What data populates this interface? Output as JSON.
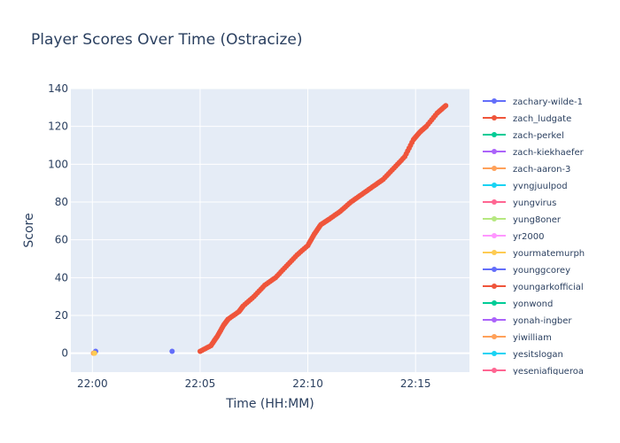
{
  "chart_data": {
    "type": "line",
    "title": "Player Scores Over Time (Ostracize)",
    "xlabel": "Time (HH:MM)",
    "ylabel": "Score",
    "x_tick_labels": [
      "22:00",
      "22:05",
      "22:10",
      "22:15"
    ],
    "x_tick_minutes": [
      0,
      5,
      10,
      15
    ],
    "xlim_minutes": [
      -1.0,
      17.5
    ],
    "ylim": [
      -10,
      140
    ],
    "y_ticks": [
      0,
      20,
      40,
      60,
      80,
      100,
      120,
      140
    ],
    "grid": true,
    "legend_position": "right",
    "series": [
      {
        "name": "zachary-wilde-1",
        "color": "#636efa",
        "x_minutes": [
          0.15
        ],
        "y": [
          1
        ]
      },
      {
        "name": "zach_ludgate",
        "color": "#EF553B",
        "x_minutes": [],
        "y": []
      },
      {
        "name": "zach-perkel",
        "color": "#00cc96",
        "x_minutes": [],
        "y": []
      },
      {
        "name": "zach-kiekhaefer",
        "color": "#ab63fa",
        "x_minutes": [],
        "y": []
      },
      {
        "name": "zach-aaron-3",
        "color": "#FFA15A",
        "x_minutes": [
          0.05
        ],
        "y": [
          0
        ]
      },
      {
        "name": "yvngjuulpod",
        "color": "#19d3f3",
        "x_minutes": [],
        "y": []
      },
      {
        "name": "yungvirus",
        "color": "#FF6692",
        "x_minutes": [],
        "y": []
      },
      {
        "name": "yung8oner",
        "color": "#B6E880",
        "x_minutes": [],
        "y": []
      },
      {
        "name": "yr2000",
        "color": "#FF97FF",
        "x_minutes": [],
        "y": []
      },
      {
        "name": "yourmatemurph",
        "color": "#FECB52",
        "x_minutes": [
          0.1
        ],
        "y": [
          0
        ]
      },
      {
        "name": "younggcorey",
        "color": "#636efa",
        "x_minutes": [
          3.7
        ],
        "y": [
          1
        ]
      },
      {
        "name": "youngarkofficial",
        "color": "#EF553B",
        "x_minutes": [
          5.0,
          5.5,
          5.8,
          6.1,
          6.3,
          6.8,
          7.0,
          7.5,
          8.0,
          8.5,
          9.0,
          9.5,
          10.0,
          10.3,
          10.6,
          11.0,
          11.5,
          12.0,
          12.5,
          13.0,
          13.5,
          14.0,
          14.5,
          14.9,
          15.2,
          15.5,
          16.0,
          16.4
        ],
        "y": [
          1,
          4,
          9,
          15,
          18,
          22,
          25,
          30,
          36,
          40,
          46,
          52,
          57,
          63,
          68,
          71,
          75,
          80,
          84,
          88,
          92,
          98,
          104,
          113,
          117,
          120,
          127,
          131
        ]
      },
      {
        "name": "yonwond",
        "color": "#00cc96",
        "x_minutes": [],
        "y": []
      },
      {
        "name": "yonah-ingber",
        "color": "#ab63fa",
        "x_minutes": [],
        "y": []
      },
      {
        "name": "yiwilliam",
        "color": "#FFA15A",
        "x_minutes": [],
        "y": []
      },
      {
        "name": "yesitslogan",
        "color": "#19d3f3",
        "x_minutes": [],
        "y": []
      },
      {
        "name": "yeseniafigueroa",
        "color": "#FF6692",
        "x_minutes": [],
        "y": []
      }
    ]
  }
}
